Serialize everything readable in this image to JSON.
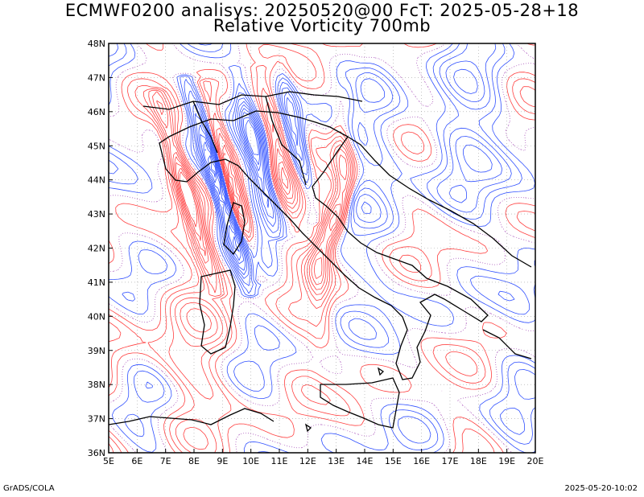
{
  "title": {
    "line1": "ECMWF0200 analisys: 20250520@00 FcT: 2025-05-28+18",
    "line2": "Relative Vorticity 700mb"
  },
  "map": {
    "lon_range": [
      5,
      20
    ],
    "lat_range": [
      36,
      48
    ],
    "lon_ticks": [
      "5E",
      "6E",
      "7E",
      "8E",
      "9E",
      "10E",
      "11E",
      "12E",
      "13E",
      "14E",
      "15E",
      "16E",
      "17E",
      "18E",
      "19E",
      "20E"
    ],
    "lat_ticks": [
      "36N",
      "37N",
      "38N",
      "39N",
      "40N",
      "41N",
      "42N",
      "43N",
      "44N",
      "45N",
      "46N",
      "47N",
      "48N"
    ],
    "field": "Relative Vorticity 700mb",
    "colors": {
      "positive": "#ff4040",
      "negative": "#3050ff",
      "zero_dotted": "#b060c0",
      "coastline": "#000000",
      "grid": "#a0a0a0"
    }
  },
  "footer": {
    "left": "GrADS/COLA",
    "right": "2025-05-20-10:02"
  }
}
